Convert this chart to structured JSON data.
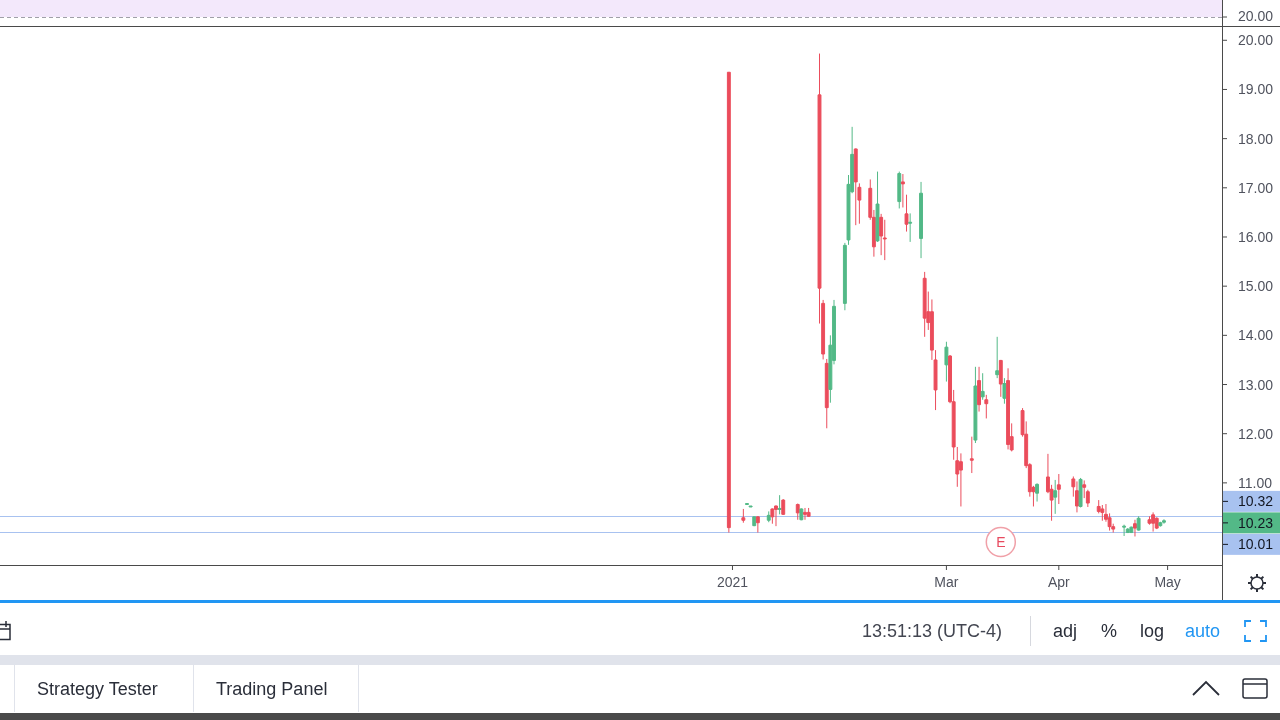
{
  "chart_data": [
    {
      "type": "other",
      "annotations": [
        "20.00"
      ]
    },
    {
      "type": "candlestick",
      "x": [
        "2020-12-31",
        "2021-01-04",
        "2021-01-05",
        "2021-01-06",
        "2021-01-07",
        "2021-01-08",
        "2021-01-11",
        "2021-01-12",
        "2021-01-13",
        "2021-01-14",
        "2021-01-15",
        "2021-01-19",
        "2021-01-20",
        "2021-01-21",
        "2021-01-22",
        "2021-01-25",
        "2021-01-26",
        "2021-01-27",
        "2021-01-28",
        "2021-01-29",
        "2021-02-01",
        "2021-02-02",
        "2021-02-03",
        "2021-02-04",
        "2021-02-05",
        "2021-02-08",
        "2021-02-09",
        "2021-02-10",
        "2021-02-11",
        "2021-02-12",
        "2021-02-16",
        "2021-02-17",
        "2021-02-18",
        "2021-02-19",
        "2021-02-22",
        "2021-02-23",
        "2021-02-24",
        "2021-02-25",
        "2021-02-26",
        "2021-03-01",
        "2021-03-02",
        "2021-03-03",
        "2021-03-04",
        "2021-03-05",
        "2021-03-08",
        "2021-03-09",
        "2021-03-10",
        "2021-03-11",
        "2021-03-12",
        "2021-03-15",
        "2021-03-16",
        "2021-03-17",
        "2021-03-18",
        "2021-03-19",
        "2021-03-22",
        "2021-03-23",
        "2021-03-24",
        "2021-03-25",
        "2021-03-26",
        "2021-03-29",
        "2021-03-30",
        "2021-03-31",
        "2021-04-01",
        "2021-04-05",
        "2021-04-06",
        "2021-04-07",
        "2021-04-08",
        "2021-04-09",
        "2021-04-12",
        "2021-04-13",
        "2021-04-14",
        "2021-04-15",
        "2021-04-16",
        "2021-04-19",
        "2021-04-20",
        "2021-04-21",
        "2021-04-22",
        "2021-04-23",
        "2021-04-26",
        "2021-04-27",
        "2021-04-28",
        "2021-04-29",
        "2021-04-30"
      ],
      "ohlc": [
        [
          19.35,
          19.35,
          9.99,
          10.09
        ],
        [
          10.29,
          10.47,
          10.19,
          10.24
        ],
        [
          10.58,
          10.58,
          10.58,
          10.58
        ],
        [
          10.53,
          10.53,
          10.53,
          10.53
        ],
        [
          10.13,
          10.31,
          10.12,
          10.31
        ],
        [
          10.31,
          10.32,
          9.99,
          10.19
        ],
        [
          10.24,
          10.42,
          10.2,
          10.34
        ],
        [
          10.47,
          10.48,
          10.17,
          10.31
        ],
        [
          10.53,
          10.54,
          10.12,
          10.46
        ],
        [
          10.46,
          10.75,
          10.36,
          10.48
        ],
        [
          10.65,
          10.67,
          10.35,
          10.36
        ],
        [
          10.56,
          10.58,
          10.25,
          10.39
        ],
        [
          10.25,
          10.48,
          10.24,
          10.47
        ],
        [
          10.4,
          10.49,
          10.25,
          10.36
        ],
        [
          10.4,
          10.49,
          10.31,
          10.32
        ],
        [
          18.89,
          19.73,
          14.24,
          14.96
        ],
        [
          14.65,
          14.72,
          13.51,
          13.62
        ],
        [
          13.43,
          13.52,
          12.11,
          12.53
        ],
        [
          12.9,
          14.0,
          12.63,
          13.8
        ],
        [
          13.49,
          14.72,
          13.41,
          14.59
        ],
        [
          14.65,
          15.88,
          14.51,
          15.83
        ],
        [
          15.94,
          17.26,
          15.84,
          17.07
        ],
        [
          16.92,
          18.24,
          16.89,
          17.68
        ],
        [
          17.79,
          17.8,
          16.24,
          17.12
        ],
        [
          17.01,
          17.09,
          16.27,
          16.75
        ],
        [
          16.99,
          17.17,
          16.35,
          16.4
        ],
        [
          16.4,
          16.55,
          15.6,
          15.8
        ],
        [
          15.92,
          17.33,
          15.9,
          16.67
        ],
        [
          16.4,
          16.47,
          15.63,
          16.02
        ],
        [
          15.98,
          16.35,
          15.53,
          15.96
        ],
        [
          16.72,
          17.33,
          16.58,
          17.29
        ],
        [
          17.12,
          17.28,
          16.6,
          17.08
        ],
        [
          16.47,
          16.86,
          16.11,
          16.26
        ],
        [
          16.28,
          16.48,
          15.9,
          16.3
        ],
        [
          15.97,
          17.12,
          15.57,
          16.89
        ],
        [
          15.16,
          15.29,
          13.97,
          14.35
        ],
        [
          14.48,
          14.89,
          14.11,
          14.26
        ],
        [
          14.48,
          14.73,
          13.5,
          13.7
        ],
        [
          13.5,
          13.7,
          12.48,
          12.89
        ],
        [
          13.4,
          13.87,
          13.06,
          13.76
        ],
        [
          13.58,
          13.6,
          12.62,
          12.65
        ],
        [
          12.65,
          12.89,
          11.47,
          11.73
        ],
        [
          11.45,
          11.73,
          10.92,
          11.18
        ],
        [
          11.43,
          11.6,
          10.52,
          11.26
        ],
        [
          11.49,
          11.94,
          11.2,
          11.46
        ],
        [
          11.87,
          13.36,
          11.81,
          12.97
        ],
        [
          13.08,
          13.36,
          12.45,
          12.59
        ],
        [
          12.75,
          13.23,
          12.69,
          12.86
        ],
        [
          12.69,
          12.79,
          12.31,
          12.61
        ],
        [
          13.2,
          13.97,
          13.13,
          13.28
        ],
        [
          13.49,
          13.5,
          12.75,
          13.01
        ],
        [
          12.72,
          13.13,
          12.61,
          13.02
        ],
        [
          13.08,
          13.33,
          11.68,
          11.78
        ],
        [
          11.94,
          12.21,
          11.64,
          11.67
        ],
        [
          12.47,
          12.52,
          11.94,
          11.98
        ],
        [
          11.99,
          12.25,
          11.3,
          11.35
        ],
        [
          11.37,
          11.4,
          10.72,
          10.82
        ],
        [
          10.91,
          10.94,
          10.52,
          10.82
        ],
        [
          10.79,
          10.99,
          10.62,
          10.97
        ],
        [
          11.12,
          11.59,
          10.79,
          10.82
        ],
        [
          10.87,
          10.96,
          10.23,
          10.65
        ],
        [
          10.71,
          11.06,
          10.37,
          10.84
        ],
        [
          10.96,
          11.18,
          10.57,
          10.87
        ],
        [
          11.08,
          11.13,
          10.72,
          10.92
        ],
        [
          10.84,
          11.03,
          10.4,
          10.53
        ],
        [
          10.52,
          11.1,
          10.5,
          11.07
        ],
        [
          10.96,
          11.05,
          10.69,
          10.91
        ],
        [
          10.82,
          10.86,
          10.51,
          10.59
        ],
        [
          10.52,
          10.65,
          10.38,
          10.42
        ],
        [
          10.47,
          10.55,
          10.23,
          10.4
        ],
        [
          10.36,
          10.57,
          10.21,
          10.26
        ],
        [
          10.29,
          10.38,
          10.03,
          10.11
        ],
        [
          10.11,
          10.17,
          9.99,
          10.06
        ],
        [
          10.1,
          10.15,
          9.92,
          10.12
        ],
        [
          9.99,
          10.08,
          9.98,
          10.06
        ],
        [
          9.99,
          10.11,
          9.98,
          10.1
        ],
        [
          10.17,
          10.25,
          9.91,
          10.08
        ],
        [
          10.04,
          10.32,
          10.03,
          10.28
        ],
        [
          10.25,
          10.32,
          10.15,
          10.18
        ],
        [
          10.35,
          10.4,
          10.01,
          10.18
        ],
        [
          10.28,
          10.3,
          10.06,
          10.08
        ],
        [
          10.13,
          10.21,
          10.11,
          10.19
        ],
        [
          10.2,
          10.26,
          10.17,
          10.23
        ]
      ],
      "colors": [
        "#eb4d5c",
        "#eb4d5c",
        "#53b987",
        "#53b987",
        "#53b987",
        "#eb4d5c",
        "#53b987",
        "#eb4d5c",
        "#eb4d5c",
        "#53b987",
        "#eb4d5c",
        "#eb4d5c",
        "#53b987",
        "#eb4d5c",
        "#eb4d5c",
        "#eb4d5c",
        "#eb4d5c",
        "#eb4d5c",
        "#53b987",
        "#53b987",
        "#53b987",
        "#53b987",
        "#53b987",
        "#eb4d5c",
        "#eb4d5c",
        "#eb4d5c",
        "#eb4d5c",
        "#53b987",
        "#eb4d5c",
        "#eb4d5c",
        "#53b987",
        "#eb4d5c",
        "#eb4d5c",
        "#53b987",
        "#53b987",
        "#eb4d5c",
        "#eb4d5c",
        "#eb4d5c",
        "#eb4d5c",
        "#53b987",
        "#eb4d5c",
        "#eb4d5c",
        "#eb4d5c",
        "#eb4d5c",
        "#eb4d5c",
        "#53b987",
        "#eb4d5c",
        "#53b987",
        "#eb4d5c",
        "#53b987",
        "#eb4d5c",
        "#53b987",
        "#eb4d5c",
        "#eb4d5c",
        "#eb4d5c",
        "#eb4d5c",
        "#eb4d5c",
        "#eb4d5c",
        "#53b987",
        "#eb4d5c",
        "#eb4d5c",
        "#53b987",
        "#eb4d5c",
        "#eb4d5c",
        "#eb4d5c",
        "#53b987",
        "#eb4d5c",
        "#eb4d5c",
        "#eb4d5c",
        "#eb4d5c",
        "#eb4d5c",
        "#eb4d5c",
        "#eb4d5c",
        "#53b987",
        "#53b987",
        "#53b987",
        "#eb4d5c",
        "#53b987",
        "#eb4d5c",
        "#eb4d5c",
        "#eb4d5c",
        "#53b987",
        "#53b987"
      ],
      "xlim": [
        "2020-06-13",
        "2021-05-16"
      ],
      "xticks": [
        {
          "value": "2021-01-01",
          "label": "2021"
        },
        {
          "value": "2021-03-01",
          "label": "Mar"
        },
        {
          "value": "2021-04-01",
          "label": "Apr"
        },
        {
          "value": "2021-05-01",
          "label": "May"
        }
      ],
      "ylim": [
        9.33,
        20.27
      ],
      "yticks": [
        {
          "value": 11,
          "label": "11.00"
        },
        {
          "value": 12,
          "label": "12.00"
        },
        {
          "value": 13,
          "label": "13.00"
        },
        {
          "value": 14,
          "label": "14.00"
        },
        {
          "value": 15,
          "label": "15.00"
        },
        {
          "value": 16,
          "label": "16.00"
        },
        {
          "value": 17,
          "label": "17.00"
        },
        {
          "value": 18,
          "label": "18.00"
        },
        {
          "value": 19,
          "label": "19.00"
        },
        {
          "value": 20,
          "label": "20.00"
        }
      ],
      "ref_lines": [
        {
          "axis": "y",
          "value": 10.32,
          "label": "10.32",
          "color": "#a8c2f0"
        },
        {
          "axis": "y",
          "value": 10.01,
          "label": "10.01",
          "color": "#a8c2f0"
        }
      ],
      "annotations": [
        "10.23",
        {
          "text": "E",
          "x": "2021-03-16"
        }
      ]
    },
    {
      "type": "other",
      "annotations": [
        "13:51:13 (UTC-4)",
        "adj",
        "%",
        "log",
        "auto",
        "Strategy Tester",
        "Trading Panel"
      ]
    }
  ]
}
